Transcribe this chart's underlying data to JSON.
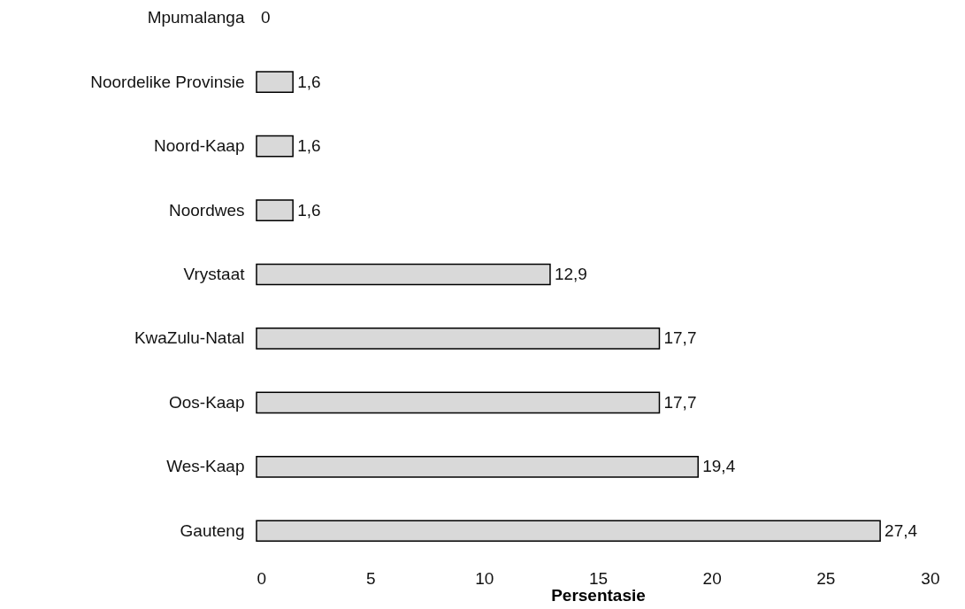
{
  "chart_data": {
    "type": "bar",
    "orientation": "horizontal",
    "xlabel": "Persentasie",
    "categories": [
      "Mpumalanga",
      "Noordelike Provinsie",
      "Noord-Kaap",
      "Noordwes",
      "Vrystaat",
      "KwaZulu-Natal",
      "Oos-Kaap",
      "Wes-Kaap",
      "Gauteng"
    ],
    "values": [
      0,
      1.6,
      1.6,
      1.6,
      12.9,
      17.7,
      17.7,
      19.4,
      27.4
    ],
    "value_labels": [
      "0",
      "1,6",
      "1,6",
      "1,6",
      "12,9",
      "17,7",
      "17,7",
      "19,4",
      "27,4"
    ],
    "color": "#d9d9d9",
    "xlim": [
      0,
      30
    ],
    "xticks": [
      0,
      5,
      10,
      15,
      20,
      25,
      30
    ]
  }
}
